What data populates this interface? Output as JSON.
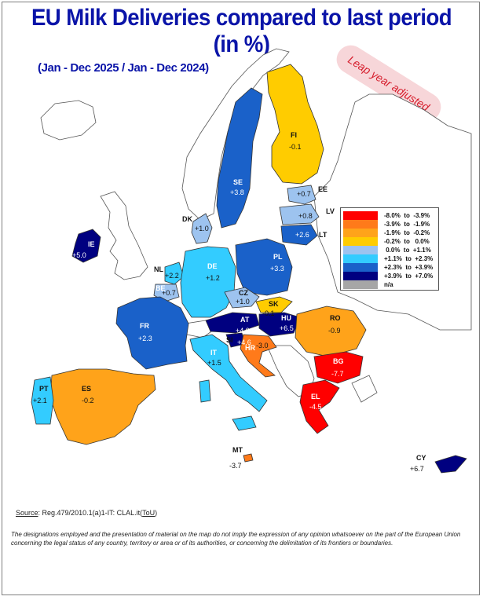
{
  "title": "EU Milk Deliveries compared to last period (in %)",
  "subtitle": "(Jan - Dec 2025 / Jan - Dec 2024)",
  "stamp": "Leap year adjusted",
  "colors": {
    "c1": "#ff0000",
    "c2": "#ff7a1a",
    "c3": "#ffa31a",
    "c4": "#ffcc00",
    "c5": "#9dc3ef",
    "c6": "#33ccff",
    "c7": "#1a61c9",
    "c8": "#000080",
    "na": "#a6a6a6",
    "nonEU": "#ffffff"
  },
  "legend": [
    {
      "label": "-8.0%  to  -3.9%",
      "color": "#ff0000"
    },
    {
      "label": "-3.9%  to  -1.9%",
      "color": "#ff7a1a"
    },
    {
      "label": "-1.9%  to  -0.2%",
      "color": "#ffa31a"
    },
    {
      "label": "-0.2%  to   0.0%",
      "color": "#ffcc00"
    },
    {
      "label": " 0.0%  to  +1.1%",
      "color": "#9dc3ef"
    },
    {
      "label": "+1.1%  to  +2.3%",
      "color": "#33ccff"
    },
    {
      "label": "+2.3%  to  +3.9%",
      "color": "#1a61c9"
    },
    {
      "label": "+3.9%  to  +7.0%",
      "color": "#000080"
    },
    {
      "label": "n/a",
      "color": "#a6a6a6"
    }
  ],
  "countries": {
    "FI": {
      "code": "FI",
      "value": "-0.1"
    },
    "SE": {
      "code": "SE",
      "value": "+3.8"
    },
    "EE": {
      "code": "EE",
      "value": "+0.7"
    },
    "LV": {
      "code": "LV",
      "value": "+0.8"
    },
    "LT": {
      "code": "LT",
      "value": "+2.6"
    },
    "DK": {
      "code": "DK",
      "value": "+1.0"
    },
    "IE": {
      "code": "IE",
      "value": "+5.0"
    },
    "NL": {
      "code": "NL",
      "value": "+2.2"
    },
    "BE": {
      "code": "BE",
      "value": "+0.7"
    },
    "DE": {
      "code": "DE",
      "value": "+1.2"
    },
    "PL": {
      "code": "PL",
      "value": "+3.3"
    },
    "CZ": {
      "code": "CZ",
      "value": "+1.0"
    },
    "SK": {
      "code": "SK",
      "value": "-0.1"
    },
    "AT": {
      "code": "AT",
      "value": "+4.0"
    },
    "HU": {
      "code": "HU",
      "value": "+6.5"
    },
    "SI": {
      "code": "SI",
      "value": "+4.6"
    },
    "HR": {
      "code": "HR",
      "value": "-3.0"
    },
    "RO": {
      "code": "RO",
      "value": "-0.9"
    },
    "BG": {
      "code": "BG",
      "value": "-7.7"
    },
    "EL": {
      "code": "EL",
      "value": "-4.5"
    },
    "FR": {
      "code": "FR",
      "value": "+2.3"
    },
    "IT": {
      "code": "IT",
      "value": "+1.5"
    },
    "ES": {
      "code": "ES",
      "value": "-0.2"
    },
    "PT": {
      "code": "PT",
      "value": "+2.1"
    },
    "MT": {
      "code": "MT",
      "value": "-3.7"
    },
    "CY": {
      "code": "CY",
      "value": "+6.7"
    }
  },
  "source": {
    "prefix": "Source",
    "text": ": Reg.479/2010.1(a)1-IT: CLAL.it(",
    "tou": "ToU",
    "suffix": ")"
  },
  "disclaimer": "The designations employed and the presentation of material on the map do not imply the expression of any opinion whatsoever on the part of the European Union concerning the legal status of any country, territory or area or of its authorities, or concerning the delimitation of its frontiers or boundaries."
}
